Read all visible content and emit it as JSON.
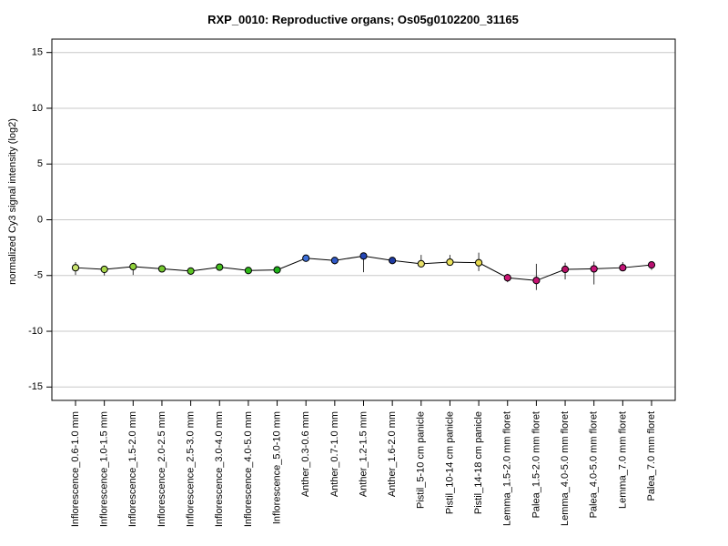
{
  "chart_data": {
    "type": "line",
    "title": "RXP_0010: Reproductive organs; Os05g0102200_31165",
    "xlabel": "",
    "ylabel": "normalized Cy3 signal intensity (log2)",
    "ylim": [
      -16.2,
      16.2
    ],
    "yticks": [
      -15,
      -10,
      -5,
      0,
      5,
      10,
      15
    ],
    "ytick_labels": [
      "-15",
      "-10",
      "-5",
      "0",
      "5",
      "10",
      "15"
    ],
    "grid": "horizontal",
    "legend": "none",
    "line_color": "#000000",
    "categories": [
      "Inflorescence_0.6-1.0 mm",
      "Inflorescence_1.0-1.5 mm",
      "Inflorescence_1.5-2.0 mm",
      "Inflorescence_2.0-2.5 mm",
      "Inflorescence_2.5-3.0 mm",
      "Inflorescence_3.0-4.0 mm",
      "Inflorescence_4.0-5.0 mm",
      "Inflorescence_5.0-10 mm",
      "Anther_0.3-0.6 mm",
      "Anther_0.7-1.0 mm",
      "Anther_1.2-1.5 mm",
      "Anther_1.6-2.0 mm",
      "Pistil_5-10 cm panicle",
      "Pistil_10-14 cm panicle",
      "Pistil_14-18 cm panicle",
      "Lemma_1.5-2.0 mm floret",
      "Palea_1.5-2.0 mm floret",
      "Lemma_4.0-5.0 mm floret",
      "Palea_4.0-5.0 mm floret",
      "Lemma_7.0 mm floret",
      "Palea_7.0 mm floret"
    ],
    "values": [
      -4.3,
      -4.45,
      -4.2,
      -4.4,
      -4.6,
      -4.25,
      -4.55,
      -4.5,
      -3.45,
      -3.65,
      -3.25,
      -3.65,
      -3.95,
      -3.8,
      -3.85,
      -5.2,
      -5.45,
      -4.45,
      -4.4,
      -4.3,
      -4.05
    ],
    "err_low": [
      -4.95,
      -5.0,
      -4.95,
      -4.5,
      -4.7,
      -4.4,
      -4.6,
      -4.75,
      -3.55,
      -4.0,
      -4.7,
      -3.75,
      -4.05,
      -4.05,
      -4.6,
      -5.6,
      -6.3,
      -5.35,
      -5.8,
      -4.6,
      -4.5
    ],
    "err_high": [
      -3.8,
      -4.15,
      -3.85,
      -4.3,
      -4.5,
      -4.1,
      -4.45,
      -4.25,
      -3.35,
      -3.45,
      -3.05,
      -3.55,
      -3.15,
      -3.15,
      -2.95,
      -4.85,
      -3.95,
      -3.85,
      -3.75,
      -3.8,
      -3.75
    ],
    "colors": [
      "#c8e26e",
      "#a9d84a",
      "#8fd03a",
      "#74c82e",
      "#5cc424",
      "#44be1e",
      "#2eb817",
      "#1eb21a",
      "#3d6fd8",
      "#2f59c9",
      "#2446b6",
      "#1d3aa3",
      "#e8e06a",
      "#ece35a",
      "#e8da4e",
      "#cc1675",
      "#c61272",
      "#b81068",
      "#c61478",
      "#c41478",
      "#b81070"
    ]
  }
}
